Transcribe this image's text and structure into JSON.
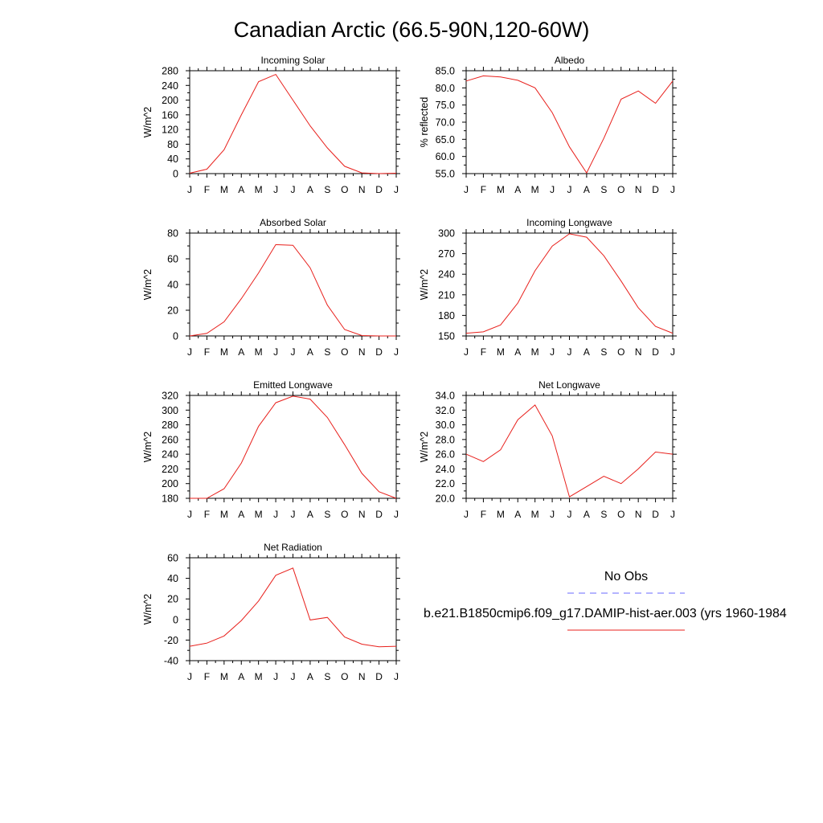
{
  "page": {
    "title": "Canadian Arctic (66.5-90N,120-60W)"
  },
  "months": [
    "J",
    "F",
    "M",
    "A",
    "M",
    "J",
    "J",
    "A",
    "S",
    "O",
    "N",
    "D",
    "J"
  ],
  "colors": {
    "model_line": "#e8201c",
    "obs_line": "#6a6aff",
    "axis": "#000000"
  },
  "legend": {
    "obs_label": "No Obs",
    "model_label": "b.e21.B1850cmip6.f09_g17.DAMIP-hist-aer.003 (yrs 1960-1984"
  },
  "chart_data": [
    {
      "type": "line",
      "title": "Incoming Solar",
      "ylabel": "W/m^2",
      "ylim": [
        0,
        280
      ],
      "yticks": [
        "0",
        "40",
        "80",
        "120",
        "160",
        "200",
        "240",
        "280"
      ],
      "series": [
        {
          "values": [
            1,
            12,
            65,
            160,
            250,
            270,
            200,
            130,
            70,
            20,
            2,
            0,
            1
          ]
        }
      ]
    },
    {
      "type": "line",
      "title": "Albedo",
      "ylabel": "% reflected",
      "ylim": [
        55,
        85
      ],
      "yticks": [
        "55.0",
        "60.0",
        "65.0",
        "70.0",
        "75.0",
        "80.0",
        "85.0"
      ],
      "series": [
        {
          "values": [
            82.0,
            83.5,
            83.2,
            82.2,
            80.0,
            72.8,
            62.8,
            55.2,
            65.3,
            76.7,
            79.1,
            75.5,
            82.0
          ]
        }
      ]
    },
    {
      "type": "line",
      "title": "Absorbed Solar",
      "ylabel": "W/m^2",
      "ylim": [
        0,
        80
      ],
      "yticks": [
        "0",
        "20",
        "40",
        "60",
        "80"
      ],
      "series": [
        {
          "values": [
            0,
            2,
            11,
            29,
            49,
            71,
            70.5,
            53,
            24,
            5,
            0.3,
            0,
            0
          ]
        }
      ]
    },
    {
      "type": "line",
      "title": "Incoming Longwave",
      "ylabel": "W/m^2",
      "ylim": [
        150,
        300
      ],
      "yticks": [
        "150",
        "180",
        "210",
        "240",
        "270",
        "300"
      ],
      "series": [
        {
          "values": [
            154,
            156,
            166,
            198,
            245,
            281,
            299,
            294,
            267,
            230,
            191,
            164,
            154
          ]
        }
      ]
    },
    {
      "type": "line",
      "title": "Emitted Longwave",
      "ylabel": "W/m^2",
      "ylim": [
        180,
        320
      ],
      "yticks": [
        "180",
        "200",
        "220",
        "240",
        "260",
        "280",
        "300",
        "320"
      ],
      "series": [
        {
          "values": [
            180,
            180,
            193,
            228,
            278,
            310,
            319,
            315,
            290,
            253,
            214,
            189,
            180
          ]
        }
      ]
    },
    {
      "type": "line",
      "title": "Net Longwave",
      "ylabel": "W/m^2",
      "ylim": [
        20,
        34
      ],
      "yticks": [
        "20.0",
        "22.0",
        "24.0",
        "26.0",
        "28.0",
        "30.0",
        "32.0",
        "34.0"
      ],
      "series": [
        {
          "values": [
            26.0,
            25.0,
            26.6,
            30.7,
            32.7,
            28.5,
            20.2,
            21.6,
            23.0,
            22.0,
            24.0,
            26.3,
            26.0
          ]
        }
      ]
    },
    {
      "type": "line",
      "title": "Net Radiation",
      "ylabel": "W/m^2",
      "ylim": [
        -40,
        60
      ],
      "yticks": [
        "-40",
        "-20",
        "0",
        "20",
        "40",
        "60"
      ],
      "series": [
        {
          "values": [
            -26,
            -23,
            -16,
            -1,
            18,
            43,
            50,
            -0.5,
            2,
            -17,
            -24,
            -26.5,
            -26
          ]
        }
      ]
    }
  ]
}
